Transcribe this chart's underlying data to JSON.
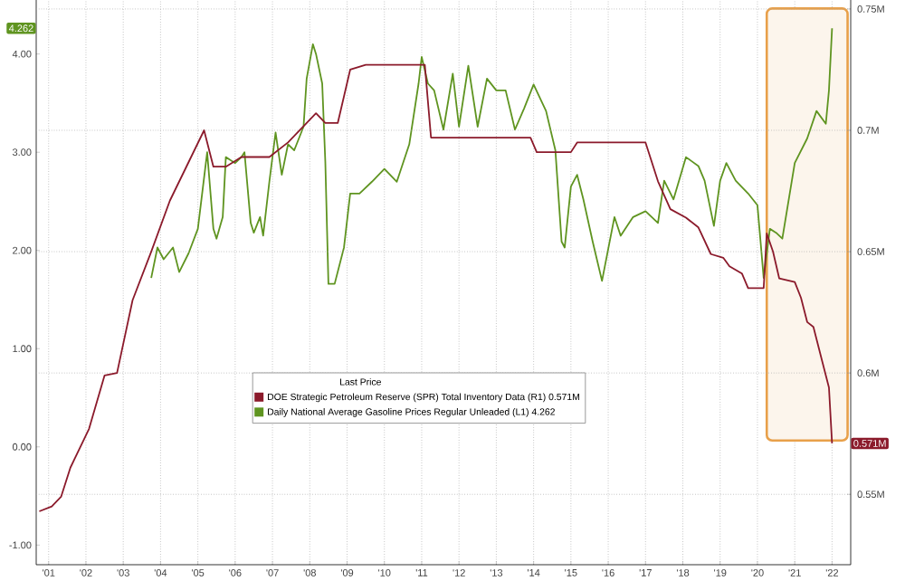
{
  "chart_data": {
    "type": "line",
    "xlim": [
      "2001-03",
      "2023-01"
    ],
    "xticks": [
      {
        "value": "2001-07",
        "label": "'01"
      },
      {
        "value": "2002-07",
        "label": "'02"
      },
      {
        "value": "2003-07",
        "label": "'03"
      },
      {
        "value": "2004-07",
        "label": "'04"
      },
      {
        "value": "2005-07",
        "label": "'05"
      },
      {
        "value": "2006-07",
        "label": "'06"
      },
      {
        "value": "2007-07",
        "label": "'07"
      },
      {
        "value": "2008-07",
        "label": "'08"
      },
      {
        "value": "2009-07",
        "label": "'09"
      },
      {
        "value": "2010-07",
        "label": "'10"
      },
      {
        "value": "2011-07",
        "label": "'11"
      },
      {
        "value": "2012-07",
        "label": "'12"
      },
      {
        "value": "2013-07",
        "label": "'13"
      },
      {
        "value": "2014-07",
        "label": "'14"
      },
      {
        "value": "2015-07",
        "label": "'15"
      },
      {
        "value": "2016-07",
        "label": "'16"
      },
      {
        "value": "2017-07",
        "label": "'17"
      },
      {
        "value": "2018-07",
        "label": "'18"
      },
      {
        "value": "2019-07",
        "label": "'19"
      },
      {
        "value": "2020-07",
        "label": "'20"
      },
      {
        "value": "2021-07",
        "label": "'21"
      },
      {
        "value": "2022-07",
        "label": "'22"
      }
    ],
    "ylim": [
      -1.2,
      4.55
    ],
    "yticks": [
      {
        "value": -1,
        "label": "-1.00"
      },
      {
        "value": 0,
        "label": "0.00"
      },
      {
        "value": 1,
        "label": "1.00"
      },
      {
        "value": 2,
        "label": "2.00"
      },
      {
        "value": 3,
        "label": "3.00"
      },
      {
        "value": 4,
        "label": "4.00"
      },
      {
        "value": 4.262,
        "label": "4.262"
      }
    ],
    "y2lim": [
      0.521,
      0.7537
    ],
    "y2ticks": [
      {
        "value": 0.55,
        "label": "0.55M"
      },
      {
        "value": 0.571,
        "label": "0.571M"
      },
      {
        "value": 0.6,
        "label": "0.6M"
      },
      {
        "value": 0.65,
        "label": "0.65M"
      },
      {
        "value": 0.7,
        "label": "0.7M"
      },
      {
        "value": 0.75,
        "label": "0.75M"
      }
    ],
    "grid": true,
    "legend": "bottom",
    "legend_title": "Last Price",
    "bands": [
      {
        "axis": "x",
        "from": "2020-10",
        "to": "2022-12",
        "color": "#e8a04a"
      }
    ],
    "series": [
      {
        "name": "DOE Strategic Petroleum Reserve (SPR) Total Inventory Data (R1) 0.571M",
        "color": "#8b1a2b",
        "axis": "y2",
        "x": [
          "2001-04",
          "2001-08",
          "2001-11",
          "2002-02",
          "2002-08",
          "2003-01",
          "2003-05",
          "2003-10",
          "2004-04",
          "2004-10",
          "2005-09",
          "2005-12",
          "2006-04",
          "2006-09",
          "2007-06",
          "2007-12",
          "2008-09",
          "2008-12",
          "2009-04",
          "2009-08",
          "2010-01",
          "2011-08",
          "2011-10",
          "2014-06",
          "2014-08",
          "2015-07",
          "2015-09",
          "2017-07",
          "2017-11",
          "2018-03",
          "2018-08",
          "2018-12",
          "2019-04",
          "2019-08",
          "2019-10",
          "2020-02",
          "2020-04",
          "2020-09",
          "2020-10",
          "2020-12",
          "2021-02",
          "2021-07",
          "2021-09",
          "2021-11",
          "2022-01",
          "2022-02",
          "2022-04",
          "2022-06",
          "2022-07"
        ],
        "values": [
          0.543,
          0.545,
          0.549,
          0.561,
          0.577,
          0.599,
          0.6,
          0.63,
          0.65,
          0.671,
          0.7,
          0.685,
          0.685,
          0.689,
          0.689,
          0.695,
          0.707,
          0.703,
          0.703,
          0.725,
          0.727,
          0.727,
          0.697,
          0.697,
          0.691,
          0.691,
          0.695,
          0.695,
          0.679,
          0.6675,
          0.664,
          0.66,
          0.649,
          0.6475,
          0.644,
          0.641,
          0.635,
          0.635,
          0.6575,
          0.65,
          0.639,
          0.6375,
          0.631,
          0.621,
          0.619,
          0.614,
          0.604,
          0.594,
          0.571
        ]
      },
      {
        "name": "Daily National Average Gasoline Prices Regular Unleaded (L1) 4.262",
        "color": "#5f9420",
        "axis": "y",
        "x": [
          "2004-04",
          "2004-06",
          "2004-08",
          "2004-11",
          "2005-01",
          "2005-04",
          "2005-07",
          "2005-10",
          "2005-12",
          "2006-01",
          "2006-03",
          "2006-04",
          "2006-07",
          "2006-09",
          "2006-10",
          "2006-12",
          "2007-01",
          "2007-03",
          "2007-04",
          "2007-06",
          "2007-08",
          "2007-10",
          "2007-12",
          "2008-02",
          "2008-05",
          "2008-06",
          "2008-08",
          "2008-09",
          "2008-11",
          "2008-12",
          "2009-01",
          "2009-03",
          "2009-06",
          "2009-08",
          "2009-11",
          "2010-03",
          "2010-07",
          "2010-11",
          "2011-03",
          "2011-06",
          "2011-07",
          "2011-09",
          "2011-11",
          "2012-02",
          "2012-05",
          "2012-07",
          "2012-10",
          "2013-01",
          "2013-04",
          "2013-07",
          "2013-10",
          "2014-01",
          "2014-04",
          "2014-07",
          "2014-11",
          "2015-02",
          "2015-04",
          "2015-05",
          "2015-07",
          "2015-09",
          "2015-11",
          "2016-02",
          "2016-05",
          "2016-09",
          "2016-11",
          "2017-03",
          "2017-07",
          "2017-11",
          "2018-01",
          "2018-04",
          "2018-08",
          "2018-12",
          "2019-02",
          "2019-05",
          "2019-07",
          "2019-09",
          "2019-12",
          "2020-04",
          "2020-07",
          "2020-09",
          "2020-11",
          "2021-01",
          "2021-03",
          "2021-07",
          "2021-11",
          "2022-02",
          "2022-05",
          "2022-06",
          "2022-07"
        ],
        "values": [
          1.72,
          2.03,
          1.91,
          2.03,
          1.78,
          1.97,
          2.22,
          3.0,
          2.22,
          2.12,
          2.34,
          2.95,
          2.89,
          2.95,
          3.0,
          2.28,
          2.18,
          2.34,
          2.15,
          2.7,
          3.2,
          2.77,
          3.08,
          3.02,
          3.26,
          3.75,
          4.1,
          4.0,
          3.7,
          2.9,
          1.66,
          1.66,
          2.03,
          2.58,
          2.58,
          2.7,
          2.83,
          2.7,
          3.08,
          3.7,
          3.97,
          3.7,
          3.63,
          3.23,
          3.8,
          3.26,
          3.88,
          3.26,
          3.75,
          3.63,
          3.63,
          3.23,
          3.45,
          3.69,
          3.42,
          3.02,
          2.09,
          2.03,
          2.65,
          2.77,
          2.52,
          2.09,
          1.69,
          2.34,
          2.15,
          2.34,
          2.4,
          2.28,
          2.71,
          2.52,
          2.95,
          2.86,
          2.71,
          2.25,
          2.71,
          2.89,
          2.71,
          2.58,
          2.46,
          1.72,
          2.22,
          2.18,
          2.12,
          2.89,
          3.14,
          3.42,
          3.29,
          3.63,
          4.262
        ]
      }
    ]
  }
}
